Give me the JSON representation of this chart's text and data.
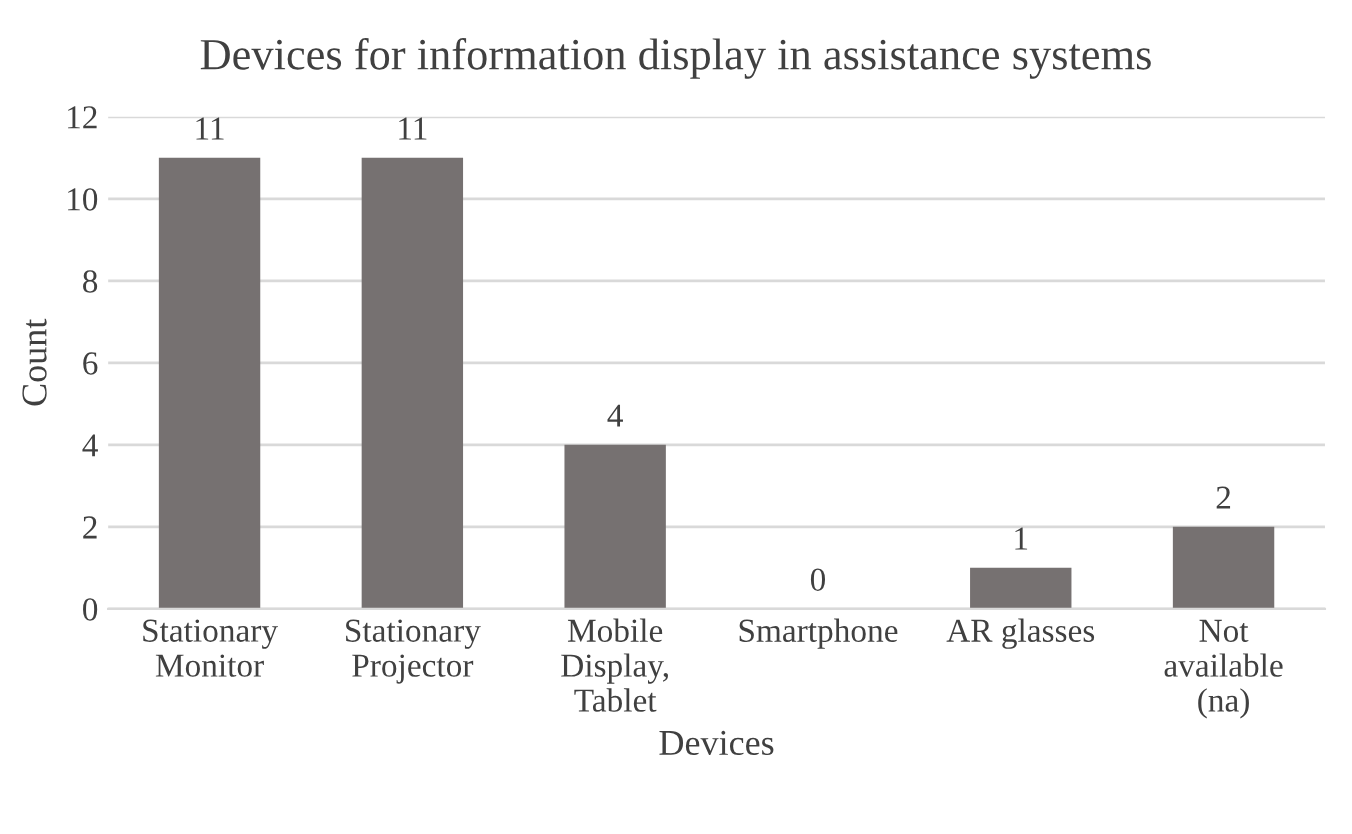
{
  "chart_data": {
    "type": "bar",
    "title": "Devices for information display in assistance systems",
    "xlabel": "Devices",
    "ylabel": "Count",
    "categories": [
      "Stationary\nMonitor",
      "Stationary\nProjector",
      "Mobile\nDisplay,\nTablet",
      "Smartphone",
      "AR glasses",
      "Not\navailable\n(na)"
    ],
    "values": [
      11,
      11,
      4,
      0,
      1,
      2
    ],
    "color": "#767171",
    "ylim": [
      0,
      12
    ],
    "yticks": [
      0,
      2,
      4,
      6,
      8,
      10,
      12
    ],
    "grid": "y",
    "data_labels": true
  }
}
